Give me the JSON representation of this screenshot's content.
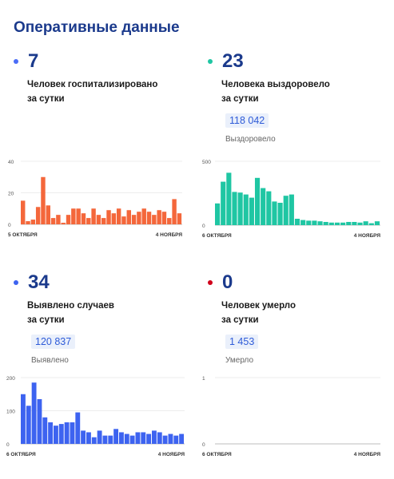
{
  "page_title": "Оперативные данные",
  "panels": [
    {
      "value": "7",
      "dot_color": "#4a6cf7",
      "desc": "Человек госпитализировано\nза сутки"
    },
    {
      "value": "23",
      "dot_color": "#1fc6a3",
      "desc": "Человека выздоровело\nза сутки",
      "total": "118 042",
      "total_label": "Выздоровело"
    },
    {
      "value": "34",
      "dot_color": "#3d63f0",
      "desc": "Выявлено случаев\nза сутки",
      "total": "120 837",
      "total_label": "Выявлено"
    },
    {
      "value": "0",
      "dot_color": "#d0021b",
      "desc": "Человек умерло\nза сутки",
      "total": "1 453",
      "total_label": "Умерло"
    }
  ],
  "chart_data": [
    {
      "type": "bar",
      "color": "#f4673b",
      "x_start": "5 ОКТЯБРЯ",
      "x_end": "4 НОЯБРЯ",
      "yticks": [
        "40",
        "20",
        "0"
      ],
      "ylim": [
        0,
        40
      ],
      "values": [
        15,
        2,
        3,
        11,
        30,
        12,
        4,
        6,
        1,
        6,
        10,
        10,
        7,
        4,
        10,
        6,
        4,
        9,
        7,
        10,
        5,
        9,
        6,
        8,
        10,
        8,
        6,
        9,
        8,
        4,
        16,
        7
      ]
    },
    {
      "type": "bar",
      "color": "#1fc6a3",
      "x_start": "6 ОКТЯБРЯ",
      "x_end": "4 НОЯБРЯ",
      "yticks": [
        "500",
        "0"
      ],
      "ylim": [
        0,
        500
      ],
      "values": [
        170,
        340,
        410,
        260,
        255,
        240,
        215,
        370,
        290,
        265,
        185,
        175,
        230,
        240,
        50,
        40,
        35,
        35,
        30,
        25,
        20,
        20,
        20,
        25,
        25,
        20,
        30,
        15,
        30
      ]
    },
    {
      "type": "bar",
      "color": "#3d63f0",
      "x_start": "6 ОКТЯБРЯ",
      "x_end": "4 НОЯБРЯ",
      "yticks": [
        "200",
        "100",
        "0"
      ],
      "ylim": [
        0,
        200
      ],
      "values": [
        150,
        115,
        185,
        135,
        80,
        65,
        55,
        60,
        65,
        65,
        95,
        40,
        35,
        20,
        40,
        25,
        25,
        45,
        35,
        30,
        25,
        35,
        35,
        30,
        40,
        35,
        25,
        30,
        25,
        30
      ]
    },
    {
      "type": "bar",
      "color": "#d0021b",
      "x_start": "6 ОКТЯБРЯ",
      "x_end": "4 НОЯБРЯ",
      "yticks": [
        "1",
        "0"
      ],
      "ylim": [
        0,
        1
      ],
      "values": []
    }
  ]
}
